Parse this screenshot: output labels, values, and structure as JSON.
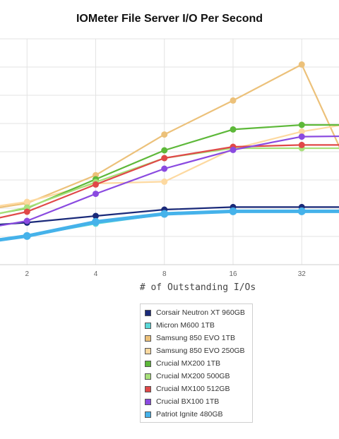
{
  "chart_data": {
    "type": "line",
    "title": "IOMeter File Server I/O Per Second",
    "xlabel": "# of Outstanding I/Os",
    "ylabel": "",
    "x": [
      1,
      2,
      4,
      8,
      16,
      32,
      64
    ],
    "x_tick_labels": [
      "2",
      "4",
      "8",
      "16",
      "32"
    ],
    "x_scale": "log2",
    "y_tick_labels": [],
    "grid": true,
    "legend_position": "bottom",
    "series": [
      {
        "name": "Corsair Neutron XT 960GB",
        "color": "#1a2a7a",
        "values": [
          265,
          298,
          345,
          390,
          408,
          408,
          408
        ]
      },
      {
        "name": "Micron M600 1TB",
        "color": "#5ad8d8",
        "values": [
          152,
          203,
          290,
          357,
          380,
          383,
          383
        ]
      },
      {
        "name": "Samsung 850 EVO 1TB",
        "color": "#ecc17a",
        "values": [
          360,
          435,
          634,
          922,
          1163,
          1418,
          355
        ]
      },
      {
        "name": "Samsung 850 EVO 250GB",
        "color": "#fdd9a0",
        "values": [
          375,
          445,
          575,
          588,
          820,
          943,
          1022
        ]
      },
      {
        "name": "Crucial MX200 1TB",
        "color": "#5db839",
        "values": [
          310,
          400,
          605,
          810,
          958,
          990,
          990
        ]
      },
      {
        "name": "Crucial MX200 500GB",
        "color": "#a8e07a",
        "values": [
          300,
          405,
          585,
          755,
          825,
          825,
          825
        ]
      },
      {
        "name": "Crucial MX100 512GB",
        "color": "#e04848",
        "values": [
          268,
          375,
          568,
          755,
          835,
          848,
          848
        ]
      },
      {
        "name": "Crucial BX100 1TB",
        "color": "#8a4ae0",
        "values": [
          225,
          310,
          502,
          680,
          813,
          907,
          912
        ]
      },
      {
        "name": "Patriot Ignite 480GB",
        "color": "#45b2ea",
        "values": [
          135,
          203,
          303,
          360,
          378,
          378,
          378
        ]
      }
    ]
  }
}
